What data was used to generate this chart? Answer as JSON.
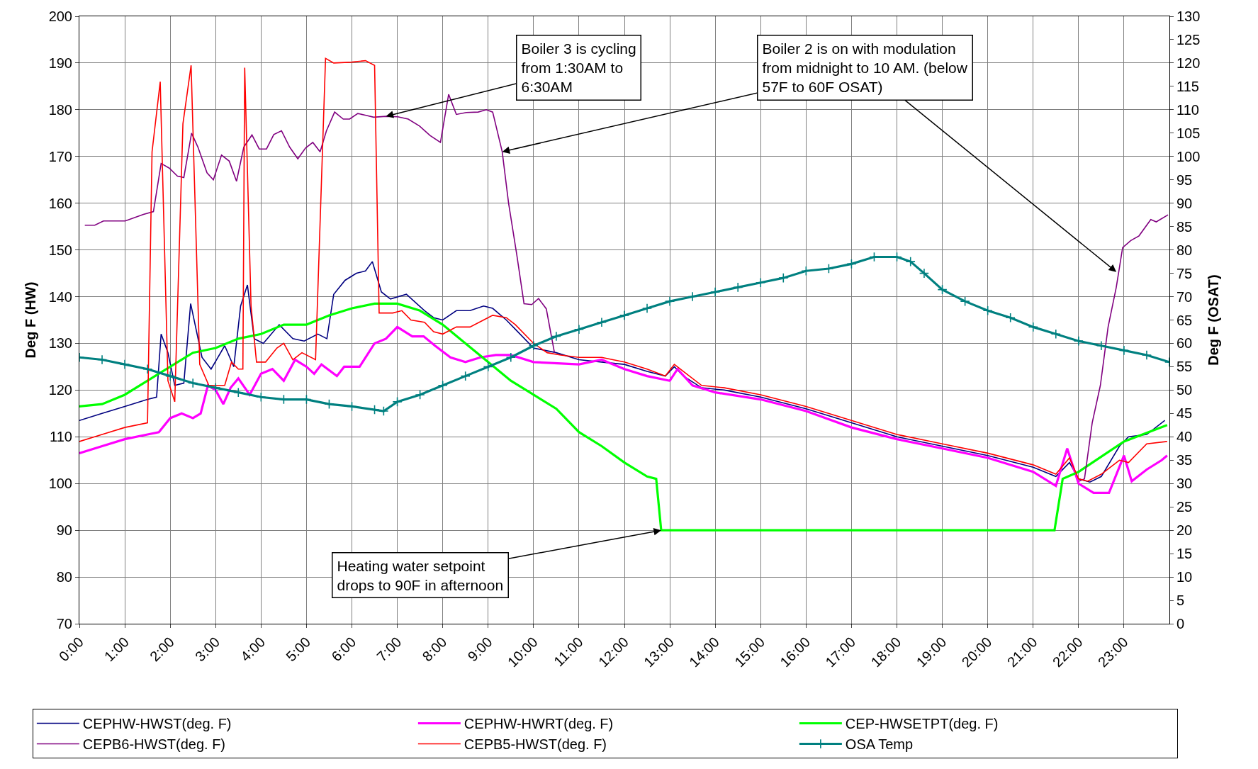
{
  "chart_data": {
    "type": "line",
    "ylabel": "Deg F (HW)",
    "y2label": "Deg F (OSAT)",
    "xlim": [
      0,
      24
    ],
    "xticks": [
      {
        "value": 0,
        "label": "0:00"
      },
      {
        "value": 1,
        "label": "1:00"
      },
      {
        "value": 2,
        "label": "2:00"
      },
      {
        "value": 3,
        "label": "3:00"
      },
      {
        "value": 4,
        "label": "4:00"
      },
      {
        "value": 5,
        "label": "5:00"
      },
      {
        "value": 6,
        "label": "6:00"
      },
      {
        "value": 7,
        "label": "7:00"
      },
      {
        "value": 8,
        "label": "8:00"
      },
      {
        "value": 9,
        "label": "9:00"
      },
      {
        "value": 10,
        "label": "10:00"
      },
      {
        "value": 11,
        "label": "11:00"
      },
      {
        "value": 12,
        "label": "12:00"
      },
      {
        "value": 13,
        "label": "13:00"
      },
      {
        "value": 14,
        "label": "14:00"
      },
      {
        "value": 15,
        "label": "15:00"
      },
      {
        "value": 16,
        "label": "16:00"
      },
      {
        "value": 17,
        "label": "17:00"
      },
      {
        "value": 18,
        "label": "18:00"
      },
      {
        "value": 19,
        "label": "19:00"
      },
      {
        "value": 20,
        "label": "20:00"
      },
      {
        "value": 21,
        "label": "21:00"
      },
      {
        "value": 22,
        "label": "22:00"
      },
      {
        "value": 23,
        "label": "23:00"
      }
    ],
    "ylim": [
      70,
      200
    ],
    "yticks": [
      70,
      80,
      90,
      100,
      110,
      120,
      130,
      140,
      150,
      160,
      170,
      180,
      190,
      200
    ],
    "y2lim": [
      0,
      130
    ],
    "y2ticks": [
      0,
      5,
      10,
      15,
      20,
      25,
      30,
      35,
      40,
      45,
      50,
      55,
      60,
      65,
      70,
      75,
      80,
      85,
      90,
      95,
      100,
      105,
      110,
      115,
      120,
      125,
      130
    ],
    "grid": true,
    "legend": "bottom",
    "marker": "none",
    "line_style": "solid",
    "series": [
      {
        "name": "CEPHW-HWST(deg. F)",
        "color": "#000080",
        "x": [
          0,
          0.5,
          1.0,
          1.5,
          1.7,
          1.8,
          1.95,
          2.1,
          2.3,
          2.45,
          2.7,
          2.9,
          3.2,
          3.4,
          3.55,
          3.7,
          3.85,
          4.05,
          4.4,
          4.7,
          4.95,
          5.25,
          5.45,
          5.6,
          5.85,
          6.1,
          6.3,
          6.45,
          6.65,
          6.85,
          7.2,
          7.6,
          7.8,
          8.0,
          8.3,
          8.6,
          8.9,
          9.1,
          9.4,
          9.6,
          10.0,
          10.5,
          11.0,
          11.5,
          12.0,
          12.5,
          12.9,
          13.1,
          13.3,
          13.7,
          14.2,
          15.0,
          16.0,
          17.0,
          18.0,
          19.0,
          20.0,
          21.0,
          21.5,
          21.8,
          22.0,
          22.25,
          22.5,
          22.9,
          23.1,
          23.5,
          23.9
        ],
        "values": [
          113.5,
          115,
          116.5,
          118,
          118.5,
          132,
          128,
          121,
          121.5,
          138.5,
          127,
          124.5,
          129.5,
          125,
          138,
          142.5,
          131,
          130,
          134,
          131,
          130.5,
          132,
          131,
          140.5,
          143.5,
          145,
          145.5,
          147.5,
          141,
          139.5,
          140.5,
          137,
          135.5,
          135,
          137,
          137,
          138,
          137.5,
          135,
          133,
          129,
          128,
          126.5,
          126,
          125.5,
          124,
          123,
          125,
          123,
          120.5,
          120,
          118.5,
          116,
          113,
          110,
          108,
          106,
          103.5,
          101.5,
          104.5,
          101,
          100.3,
          101.5,
          108,
          110,
          110.5,
          113.5
        ]
      },
      {
        "name": "CEPHW-HWRT(deg. F)",
        "color": "#ff00ff",
        "x": [
          0,
          0.5,
          1.0,
          1.5,
          1.75,
          2.0,
          2.25,
          2.5,
          2.67,
          2.83,
          3.0,
          3.17,
          3.33,
          3.5,
          3.75,
          4.0,
          4.25,
          4.5,
          4.75,
          5.0,
          5.17,
          5.33,
          5.67,
          5.83,
          6.17,
          6.5,
          6.75,
          7.0,
          7.33,
          7.58,
          7.83,
          8.17,
          8.5,
          8.83,
          9.17,
          9.5,
          10.0,
          11.0,
          11.5,
          12.0,
          12.5,
          13.0,
          13.17,
          13.5,
          14.0,
          15.0,
          16.0,
          17.0,
          18.0,
          19.0,
          20.0,
          21.0,
          21.5,
          21.75,
          22.0,
          22.33,
          22.67,
          23.0,
          23.17,
          23.5,
          23.83,
          23.95
        ],
        "values": [
          106.5,
          108,
          109.5,
          110.5,
          111,
          114,
          115,
          114,
          115,
          121,
          120,
          117,
          120.5,
          122.5,
          119,
          123.5,
          124.5,
          122,
          126.5,
          125,
          123.5,
          125.5,
          123,
          125,
          125,
          130,
          131,
          133.5,
          131.5,
          131.5,
          129.5,
          127,
          126,
          127,
          127.5,
          127.5,
          126,
          125.5,
          126.5,
          124.5,
          123,
          122,
          124.5,
          121,
          119.5,
          118,
          115.5,
          112,
          109.5,
          107.5,
          105.5,
          102.5,
          99.5,
          107.5,
          100,
          98,
          98,
          106,
          100.5,
          103,
          105,
          106
        ]
      },
      {
        "name": "CEP-HWSETPT(deg. F)",
        "color": "#00ff00",
        "x": [
          0,
          0.5,
          1.0,
          1.5,
          2.0,
          2.5,
          3.0,
          3.5,
          4.0,
          4.5,
          5.0,
          5.5,
          6.0,
          6.5,
          7.0,
          7.5,
          8.0,
          8.5,
          9.0,
          9.5,
          10.0,
          10.5,
          11.0,
          11.5,
          12.0,
          12.5,
          12.7,
          12.81,
          21.47,
          21.65,
          22.0,
          23.0,
          23.95
        ],
        "values": [
          116.5,
          117,
          119,
          122,
          125,
          128,
          129,
          131,
          132,
          134,
          134,
          136,
          137.5,
          138.5,
          138.5,
          137,
          134,
          130,
          126,
          122,
          119,
          116,
          111,
          108,
          104.5,
          101.5,
          101,
          90,
          90,
          101,
          102.5,
          109,
          112.5
        ]
      },
      {
        "name": "CEPB6-HWST(deg. F)",
        "color": "#800080",
        "x": [
          0.12,
          0.34,
          0.53,
          1.01,
          1.41,
          1.63,
          1.8,
          1.98,
          2.16,
          2.3,
          2.47,
          2.61,
          2.81,
          2.95,
          3.13,
          3.3,
          3.46,
          3.62,
          3.8,
          3.96,
          4.12,
          4.28,
          4.45,
          4.63,
          4.81,
          4.98,
          5.14,
          5.3,
          5.44,
          5.62,
          5.81,
          5.95,
          6.13,
          6.31,
          6.48,
          6.75,
          7.01,
          7.24,
          7.49,
          7.72,
          7.95,
          8.13,
          8.3,
          8.52,
          8.78,
          8.96,
          9.1,
          9.31,
          9.45,
          9.63,
          9.79,
          9.96,
          10.11,
          10.28,
          10.46,
          16.0,
          22.0,
          22.13,
          22.3,
          22.48,
          22.65,
          22.83,
          22.97,
          23.15,
          23.33,
          23.59,
          23.71,
          23.97
        ],
        "values": [
          155.3,
          155.3,
          156.2,
          156.2,
          157.6,
          158.2,
          168.5,
          167.5,
          165.8,
          165.5,
          175,
          172,
          166.5,
          165,
          170.3,
          169,
          164.7,
          172,
          174.6,
          171.6,
          171.6,
          174.7,
          175.5,
          172,
          169.5,
          171.8,
          173,
          171,
          175.5,
          179.5,
          178,
          178,
          179.2,
          178.8,
          178.4,
          178.6,
          178.5,
          178,
          176.5,
          174.5,
          173,
          183.3,
          179,
          179.4,
          179.5,
          180,
          179.5,
          171,
          160,
          149,
          138.5,
          138.3,
          139.6,
          137.4,
          128,
          null,
          100.5,
          101,
          113,
          121,
          133.5,
          142,
          150.5,
          152,
          153,
          156.5,
          156,
          157.5
        ]
      },
      {
        "name": "CEPB5-HWST(deg. F)",
        "color": "#ff0000",
        "x": [
          0,
          0.5,
          1.0,
          1.5,
          1.6,
          1.78,
          1.95,
          2.1,
          2.28,
          2.46,
          2.65,
          2.85,
          3.2,
          3.35,
          3.5,
          3.6,
          3.64,
          3.78,
          3.9,
          4.1,
          4.35,
          4.5,
          4.7,
          4.9,
          5.2,
          5.42,
          5.6,
          6.0,
          6.3,
          6.5,
          6.6,
          6.9,
          7.1,
          7.3,
          7.6,
          7.8,
          8.0,
          8.3,
          8.6,
          8.9,
          9.1,
          9.4,
          9.6,
          10.0,
          10.3,
          10.6,
          11.0,
          11.5,
          12.0,
          12.5,
          12.9,
          13.1,
          13.3,
          13.7,
          14.2,
          15.0,
          16.0,
          17.0,
          18.0,
          19.0,
          20.0,
          21.0,
          21.5,
          21.8,
          22.0,
          22.2,
          22.5,
          22.9,
          23.1,
          23.5,
          23.95
        ],
        "values": [
          109,
          110.5,
          112,
          113,
          171,
          186,
          122,
          117.5,
          177,
          189.5,
          125.5,
          121,
          121,
          126,
          124.5,
          124.5,
          189,
          138,
          126,
          126,
          129,
          130,
          126.5,
          128,
          126.5,
          191,
          190,
          190.2,
          190.5,
          189.5,
          136.5,
          136.5,
          137,
          135,
          134.5,
          132.5,
          132,
          133.5,
          133.5,
          135,
          136,
          135.5,
          134,
          130,
          128,
          127.5,
          127,
          127,
          126,
          124.5,
          123,
          125.5,
          124,
          121,
          120.5,
          119,
          116.5,
          113.5,
          110.5,
          108.5,
          106.5,
          104,
          102,
          105.5,
          101,
          100.5,
          102,
          105,
          104.5,
          108.5,
          109
        ]
      },
      {
        "name": "OSA Temp",
        "color": "#008080",
        "axis": "y2",
        "marker": "cross",
        "x": [
          0,
          0.5,
          1,
          1.5,
          2,
          2.5,
          3,
          3.5,
          4,
          4.5,
          5,
          5.5,
          6,
          6.5,
          6.7,
          7,
          7.5,
          8,
          8.5,
          9,
          9.5,
          10,
          10.5,
          11,
          11.5,
          12,
          12.5,
          13,
          13.5,
          14,
          14.5,
          15,
          15.5,
          16,
          16.5,
          17,
          17.5,
          18,
          18.3,
          18.6,
          19,
          19.5,
          20,
          20.5,
          21,
          21.5,
          22,
          22.5,
          23,
          23.5,
          24
        ],
        "values": [
          57,
          56.5,
          55.5,
          54.5,
          53,
          51.5,
          50.5,
          49.5,
          48.5,
          48,
          48,
          47,
          46.5,
          45.8,
          45.5,
          47.5,
          49,
          51,
          53,
          55,
          57,
          59.5,
          61.5,
          63,
          64.5,
          66,
          67.5,
          69,
          70,
          71,
          72,
          73,
          74,
          75.5,
          76,
          77,
          78.5,
          78.5,
          77.5,
          75,
          71.5,
          69,
          67,
          65.5,
          63.5,
          62,
          60.5,
          59.5,
          58.5,
          57.5,
          56
        ]
      }
    ],
    "annotations": [
      {
        "text": "Boiler 3 is cycling\nfrom 1:30AM to\n6:30AM",
        "x": 6.75,
        "y": 178.6
      },
      {
        "text": "Boiler 2 is on with modulation\nfrom midnight to 10 AM. (below\n57F to 60F OSAT)",
        "x": 9.31,
        "y": 171
      },
      {
        "text": "Heating water setpoint\ndrops to 90F in afternoon",
        "x": 12.81,
        "y": 90
      }
    ]
  }
}
